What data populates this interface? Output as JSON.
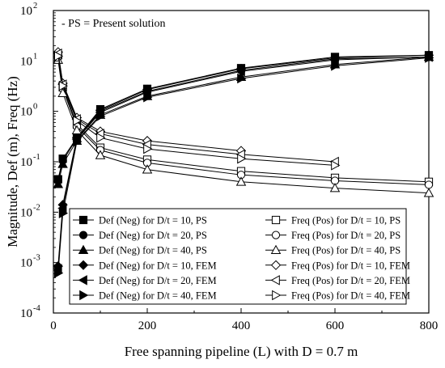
{
  "chart_data": {
    "type": "line",
    "title": "",
    "xlabel": "Free spanning pipeline (L) with D = 0.7 m",
    "ylabel": "Magnitude, Def (m), Freq (Hz)",
    "yscale": "log",
    "xlim": [
      0,
      800
    ],
    "ylim": [
      0.0001,
      100
    ],
    "x_ticks": [
      0,
      200,
      400,
      600,
      800
    ],
    "x_tick_labels": [
      "0",
      "200",
      "400",
      "600",
      "800"
    ],
    "y_ticks": [
      0.0001,
      0.001,
      0.01,
      0.1,
      1,
      10,
      100
    ],
    "y_tick_labels": [
      {
        "base": "10",
        "exp": "-4"
      },
      {
        "base": "10",
        "exp": "-3"
      },
      {
        "base": "10",
        "exp": "-2"
      },
      {
        "base": "10",
        "exp": "-1"
      },
      {
        "base": "10",
        "exp": "0"
      },
      {
        "base": "10",
        "exp": "1"
      },
      {
        "base": "10",
        "exp": "2"
      }
    ],
    "annotation": "- PS = Present solution",
    "grid": false,
    "legend_position": "bottom",
    "series": [
      {
        "name": "Def (Neg) for D/t = 10, PS",
        "marker": "square",
        "filled": true,
        "x": [
          10,
          20,
          50,
          100,
          200,
          400,
          600,
          800
        ],
        "y": [
          0.045,
          0.115,
          0.3,
          1.1,
          2.8,
          7.2,
          12,
          13
        ]
      },
      {
        "name": "Def (Neg) for D/t = 20, PS",
        "marker": "circle",
        "filled": true,
        "x": [
          10,
          20,
          50,
          100,
          200,
          400,
          600,
          800
        ],
        "y": [
          0.042,
          0.105,
          0.29,
          1.0,
          2.5,
          6.5,
          11,
          12
        ]
      },
      {
        "name": "Def (Neg) for D/t = 40, PS",
        "marker": "triangle-up",
        "filled": true,
        "x": [
          10,
          20,
          50,
          100,
          200,
          400,
          600,
          800
        ],
        "y": [
          0.036,
          0.09,
          0.26,
          0.85,
          2.0,
          4.8,
          8.5,
          12
        ]
      },
      {
        "name": "Def (Neg) for D/t = 10, FEM",
        "marker": "diamond",
        "filled": true,
        "x": [
          10,
          20,
          50,
          100,
          200,
          400,
          600,
          800
        ],
        "y": [
          0.00085,
          0.014,
          0.3,
          1.05,
          2.7,
          7.0,
          11.5,
          13
        ]
      },
      {
        "name": "Def (Neg) for D/t = 20, FEM",
        "marker": "triangle-left",
        "filled": true,
        "x": [
          10,
          20,
          50,
          100,
          200,
          400,
          600,
          800
        ],
        "y": [
          0.00075,
          0.012,
          0.28,
          0.95,
          2.4,
          6.2,
          10.5,
          12
        ]
      },
      {
        "name": "Def (Neg) for D/t = 40, FEM",
        "marker": "triangle-right",
        "filled": true,
        "x": [
          10,
          20,
          50,
          100,
          200,
          400,
          600,
          800
        ],
        "y": [
          0.00062,
          0.0095,
          0.25,
          0.8,
          1.9,
          4.5,
          8.0,
          11.5
        ]
      },
      {
        "name": "Freq (Pos) for D/t = 10, PS",
        "marker": "square",
        "filled": false,
        "x": [
          10,
          20,
          50,
          100,
          200,
          400,
          600,
          800
        ],
        "y": [
          13,
          3.0,
          0.55,
          0.19,
          0.11,
          0.065,
          0.048,
          0.04
        ]
      },
      {
        "name": "Freq (Pos) for D/t = 20, PS",
        "marker": "circle",
        "filled": false,
        "x": [
          10,
          20,
          50,
          100,
          200,
          400,
          600,
          800
        ],
        "y": [
          12,
          2.8,
          0.5,
          0.17,
          0.095,
          0.055,
          0.042,
          0.035
        ]
      },
      {
        "name": "Freq (Pos) for D/t = 40, PS",
        "marker": "triangle-up",
        "filled": false,
        "x": [
          10,
          20,
          50,
          100,
          200,
          400,
          600,
          800
        ],
        "y": [
          10.5,
          2.3,
          0.42,
          0.135,
          0.07,
          0.04,
          0.03,
          0.024
        ]
      },
      {
        "name": "Freq (Pos) for D/t = 10, FEM",
        "marker": "diamond",
        "filled": false,
        "x": [
          10,
          20,
          50,
          100,
          200,
          400
        ],
        "y": [
          15,
          3.6,
          0.75,
          0.4,
          0.26,
          0.165
        ]
      },
      {
        "name": "Freq (Pos) for D/t = 20, FEM",
        "marker": "triangle-left",
        "filled": false,
        "x": [
          10,
          20,
          50,
          100,
          200,
          400,
          600
        ],
        "y": [
          14,
          3.4,
          0.7,
          0.36,
          0.22,
          0.14,
          0.1
        ]
      },
      {
        "name": "Freq (Pos) for D/t = 40, FEM",
        "marker": "triangle-right",
        "filled": false,
        "x": [
          10,
          20,
          50,
          100,
          200,
          400,
          600
        ],
        "y": [
          12.5,
          3.2,
          0.65,
          0.3,
          0.18,
          0.115,
          0.085
        ]
      }
    ]
  }
}
